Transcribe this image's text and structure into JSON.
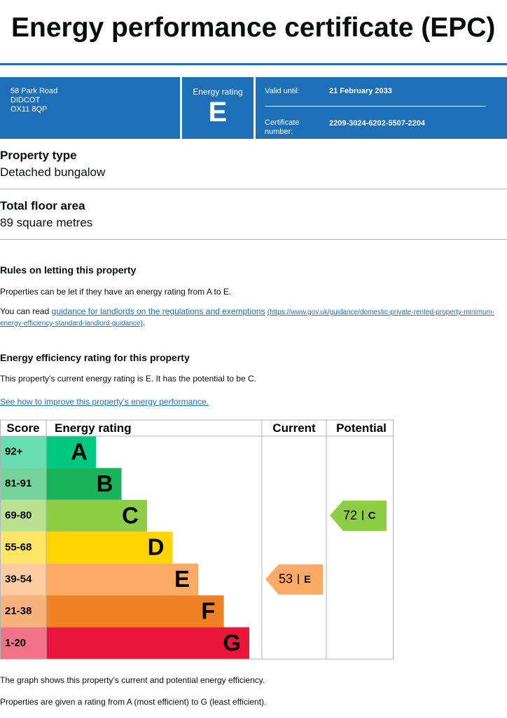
{
  "title": "Energy performance certificate (EPC)",
  "header": {
    "address": [
      "58 Park Road",
      "DIDCOT",
      "OX11 8QP"
    ],
    "rating_label": "Energy rating",
    "rating": "E",
    "valid_label": "Valid until:",
    "valid_date": "21 February 2033",
    "cert_label": "Certificate number:",
    "cert_number": "2209-3024-6202-5507-2204"
  },
  "property_type": {
    "heading": "Property type",
    "value": "Detached bungalow"
  },
  "floor_area": {
    "heading": "Total floor area",
    "value": "89 square metres"
  },
  "letting": {
    "heading": "Rules on letting this property",
    "text": "Properties can be let if they have an energy rating from A to E.",
    "read_prefix": "You can read",
    "link_text": "guidance for landlords on the regulations and exemptions",
    "link_url": "(https://www.gov.uk/guidance/domestic-private-rented-property-minimum-energy-efficiency-standard-landlord-guidance)",
    "read_suffix": "."
  },
  "efficiency": {
    "heading": "Energy efficiency rating for this property",
    "text": "This property’s current energy rating is E. It has the potential to be C.",
    "link": "See how to improve this property’s energy performance."
  },
  "table": {
    "headers": [
      "Score",
      "Energy rating",
      "Current",
      "Potential"
    ],
    "bands": [
      {
        "score": "92+",
        "letter": "A",
        "color": "#00c781"
      },
      {
        "score": "81-91",
        "letter": "B",
        "color": "#19b459"
      },
      {
        "score": "69-80",
        "letter": "C",
        "color": "#8dce46"
      },
      {
        "score": "55-68",
        "letter": "D",
        "color": "#ffd500"
      },
      {
        "score": "39-54",
        "letter": "E",
        "color": "#fcaa65"
      },
      {
        "score": "21-38",
        "letter": "F",
        "color": "#ef8023"
      },
      {
        "score": "1-20",
        "letter": "G",
        "color": "#e9153b"
      }
    ],
    "current": {
      "value": 53,
      "letter": "E"
    },
    "potential": {
      "value": 72,
      "letter": "C"
    }
  },
  "footer": [
    "The graph shows this property’s current and potential energy efficiency.",
    "Properties are given a rating from A (most efficient) to G (least efficient)."
  ]
}
